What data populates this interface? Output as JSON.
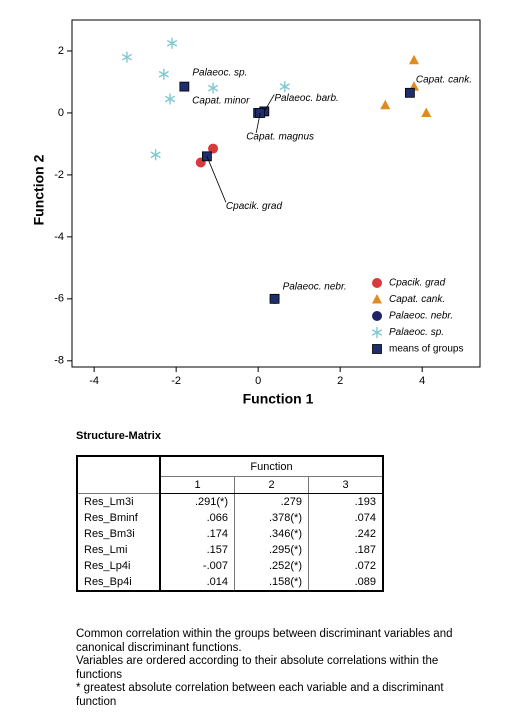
{
  "chart_data": {
    "type": "scatter",
    "xlabel": "Function 1",
    "ylabel": "Function 2",
    "xlim": [
      -4.54,
      5.41
    ],
    "ylim": [
      -8.2,
      3.0
    ],
    "xticks": [
      -4,
      -2,
      0,
      2,
      4
    ],
    "yticks": [
      -8,
      -6,
      -4,
      -2,
      0,
      2
    ],
    "grid": false,
    "legend": "lower right",
    "series": [
      {
        "name": "Cpacik. grad",
        "color": "#d63a3a",
        "marker": "circle",
        "x": [
          -1.4,
          -1.1
        ],
        "y": [
          -1.6,
          -1.15
        ]
      },
      {
        "name": "Capat. cank.",
        "color": "#e08b1f",
        "marker": "triangle",
        "x": [
          3.8,
          3.1,
          4.1,
          3.8
        ],
        "y": [
          1.7,
          0.25,
          0.0,
          0.85
        ]
      },
      {
        "name": "Palaeoc. nebr.",
        "color": "#1e2466",
        "marker": "circle",
        "x": [
          0.4
        ],
        "y": [
          -6.0
        ]
      },
      {
        "name": "Palaeoc. sp.",
        "color": "#80c8d2",
        "marker": "star",
        "x": [
          -3.2,
          -2.1,
          -2.3,
          -2.15,
          -1.1,
          0.65,
          -2.5
        ],
        "y": [
          1.8,
          2.25,
          1.25,
          0.45,
          0.8,
          0.85,
          -1.35
        ]
      },
      {
        "name": "means of groups",
        "color": "#1f2d6b",
        "marker": "square",
        "x": [
          -1.8,
          0.0,
          0.15,
          0.05,
          -1.25,
          3.7,
          0.4
        ],
        "y": [
          0.85,
          0.0,
          0.05,
          0.0,
          -1.4,
          0.65,
          -6.0
        ],
        "labels": [
          "Palaeoc. sp.",
          "Capat. minor",
          "Palaeoc. barb.",
          "Capat. magnus",
          "Cpacik. grad",
          "Capat. cank.",
          "Palaeoc. nebr."
        ]
      }
    ]
  },
  "table": {
    "title": "Structure-Matrix",
    "group_header": "Function",
    "columns": [
      "1",
      "2",
      "3"
    ],
    "rows": [
      [
        "Res_Lm3i",
        ".291(*)",
        ".279",
        ".193"
      ],
      [
        "Res_Bminf",
        ".066",
        ".378(*)",
        ".074"
      ],
      [
        "Res_Bm3i",
        ".174",
        ".346(*)",
        ".242"
      ],
      [
        "Res_Lmi",
        ".157",
        ".295(*)",
        ".187"
      ],
      [
        "Res_Lp4i",
        "-.007",
        ".252(*)",
        ".072"
      ],
      [
        "Res_Bp4i",
        ".014",
        ".158(*)",
        ".089"
      ]
    ]
  },
  "notes": [
    "Common correlation within the groups between discriminant variables and canonical discriminant functions.",
    "Variables are ordered according to their absolute correlations within the functions",
    "*  greatest absolute correlation between each variable and a discriminant function"
  ]
}
